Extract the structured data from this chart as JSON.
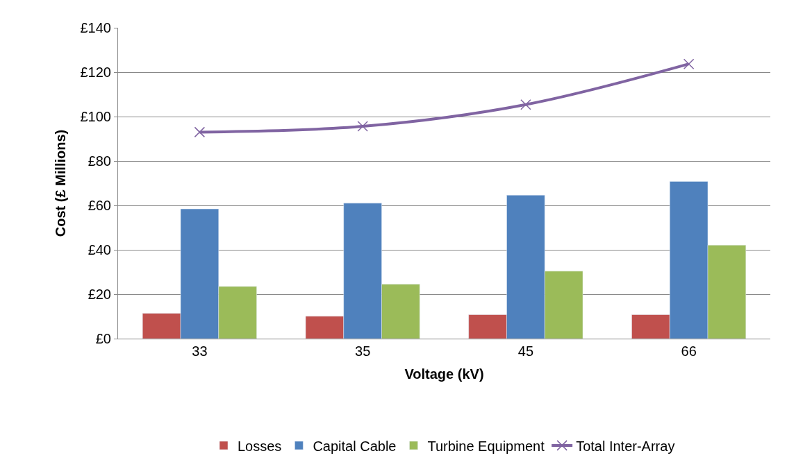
{
  "chart_data": {
    "type": "bar",
    "xlabel": "Voltage (kV)",
    "ylabel": "Cost (£ Millions)",
    "categories": [
      "33",
      "35",
      "45",
      "66"
    ],
    "series": [
      {
        "name": "Losses",
        "color": "#c0504d",
        "values": [
          11.4,
          10.1,
          10.8,
          10.8
        ]
      },
      {
        "name": "Capital Cable",
        "color": "#4f81bd",
        "values": [
          58.4,
          61.0,
          64.6,
          70.8
        ]
      },
      {
        "name": "Turbine Equipment",
        "color": "#9bbb59",
        "values": [
          23.5,
          24.5,
          30.4,
          42.1
        ]
      },
      {
        "name": "Total Inter-Array",
        "type": "line",
        "color": "#8064a2",
        "marker": "cross",
        "values": [
          93.0,
          95.6,
          105.4,
          123.7
        ]
      }
    ],
    "ylim": [
      0,
      140
    ],
    "yticks": [
      {
        "value": 0,
        "label": "£0"
      },
      {
        "value": 20,
        "label": "£20"
      },
      {
        "value": 40,
        "label": "£40"
      },
      {
        "value": 60,
        "label": "£60"
      },
      {
        "value": 80,
        "label": "£80"
      },
      {
        "value": 100,
        "label": "£100"
      },
      {
        "value": 120,
        "label": "£120"
      },
      {
        "value": 140,
        "label": "£140"
      }
    ],
    "grid": "y",
    "legend": "bottom"
  }
}
